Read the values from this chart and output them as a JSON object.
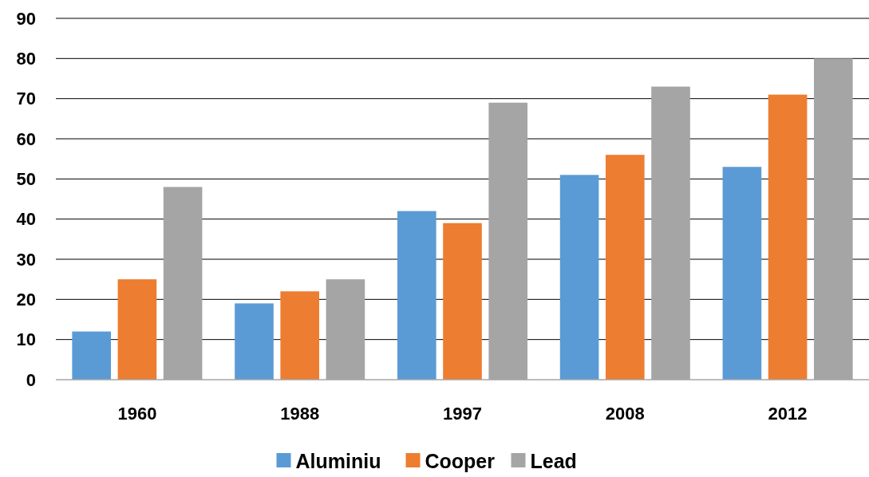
{
  "chart_data": {
    "type": "bar",
    "categories": [
      "1960",
      "1988",
      "1997",
      "2008",
      "2012"
    ],
    "series": [
      {
        "name": "Aluminiu",
        "color": "#5b9bd5",
        "values": [
          12,
          19,
          42,
          51,
          53
        ]
      },
      {
        "name": "Cooper",
        "color": "#ed7d31",
        "values": [
          25,
          22,
          39,
          56,
          71
        ]
      },
      {
        "name": "Lead",
        "color": "#a5a5a5",
        "values": [
          48,
          25,
          69,
          73,
          80
        ]
      }
    ],
    "ylim": [
      0,
      90
    ],
    "yticks": [
      0,
      10,
      20,
      30,
      40,
      50,
      60,
      70,
      80,
      90
    ],
    "grid": "y",
    "legend": "bottom"
  }
}
